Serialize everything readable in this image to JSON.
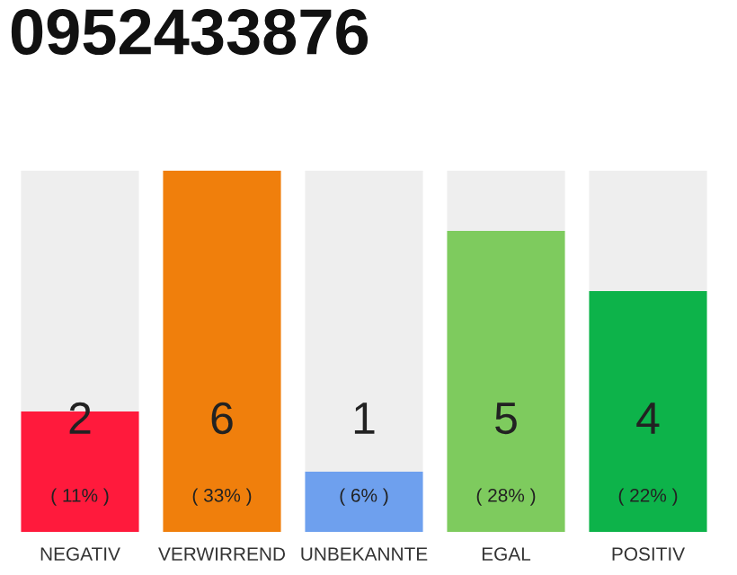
{
  "chart_data": {
    "type": "bar",
    "title": "0952433876",
    "categories": [
      "NEGATIV",
      "VERWIRREND",
      "UNBEKANNTE",
      "EGAL",
      "POSITIV"
    ],
    "stacked": true,
    "series": [
      {
        "colors": [
          "#ff1a3c",
          "#f07f0c",
          "#6ea0ee",
          "#7ecb5e",
          "#0db34a"
        ],
        "values": [
          2,
          6,
          1,
          5,
          4
        ],
        "value_labels": [
          "2",
          "6",
          "1",
          "5",
          "4"
        ]
      },
      {
        "color": "#eeeeee",
        "values": [
          4,
          null,
          5,
          1,
          2
        ],
        "value_labels": [
          null,
          null,
          null,
          null,
          null
        ]
      }
    ],
    "annotations": [
      "( 11% )",
      "( 33% )",
      "( 6% )",
      "( 28% )",
      "( 22% )"
    ],
    "grid": false,
    "legend": false
  }
}
